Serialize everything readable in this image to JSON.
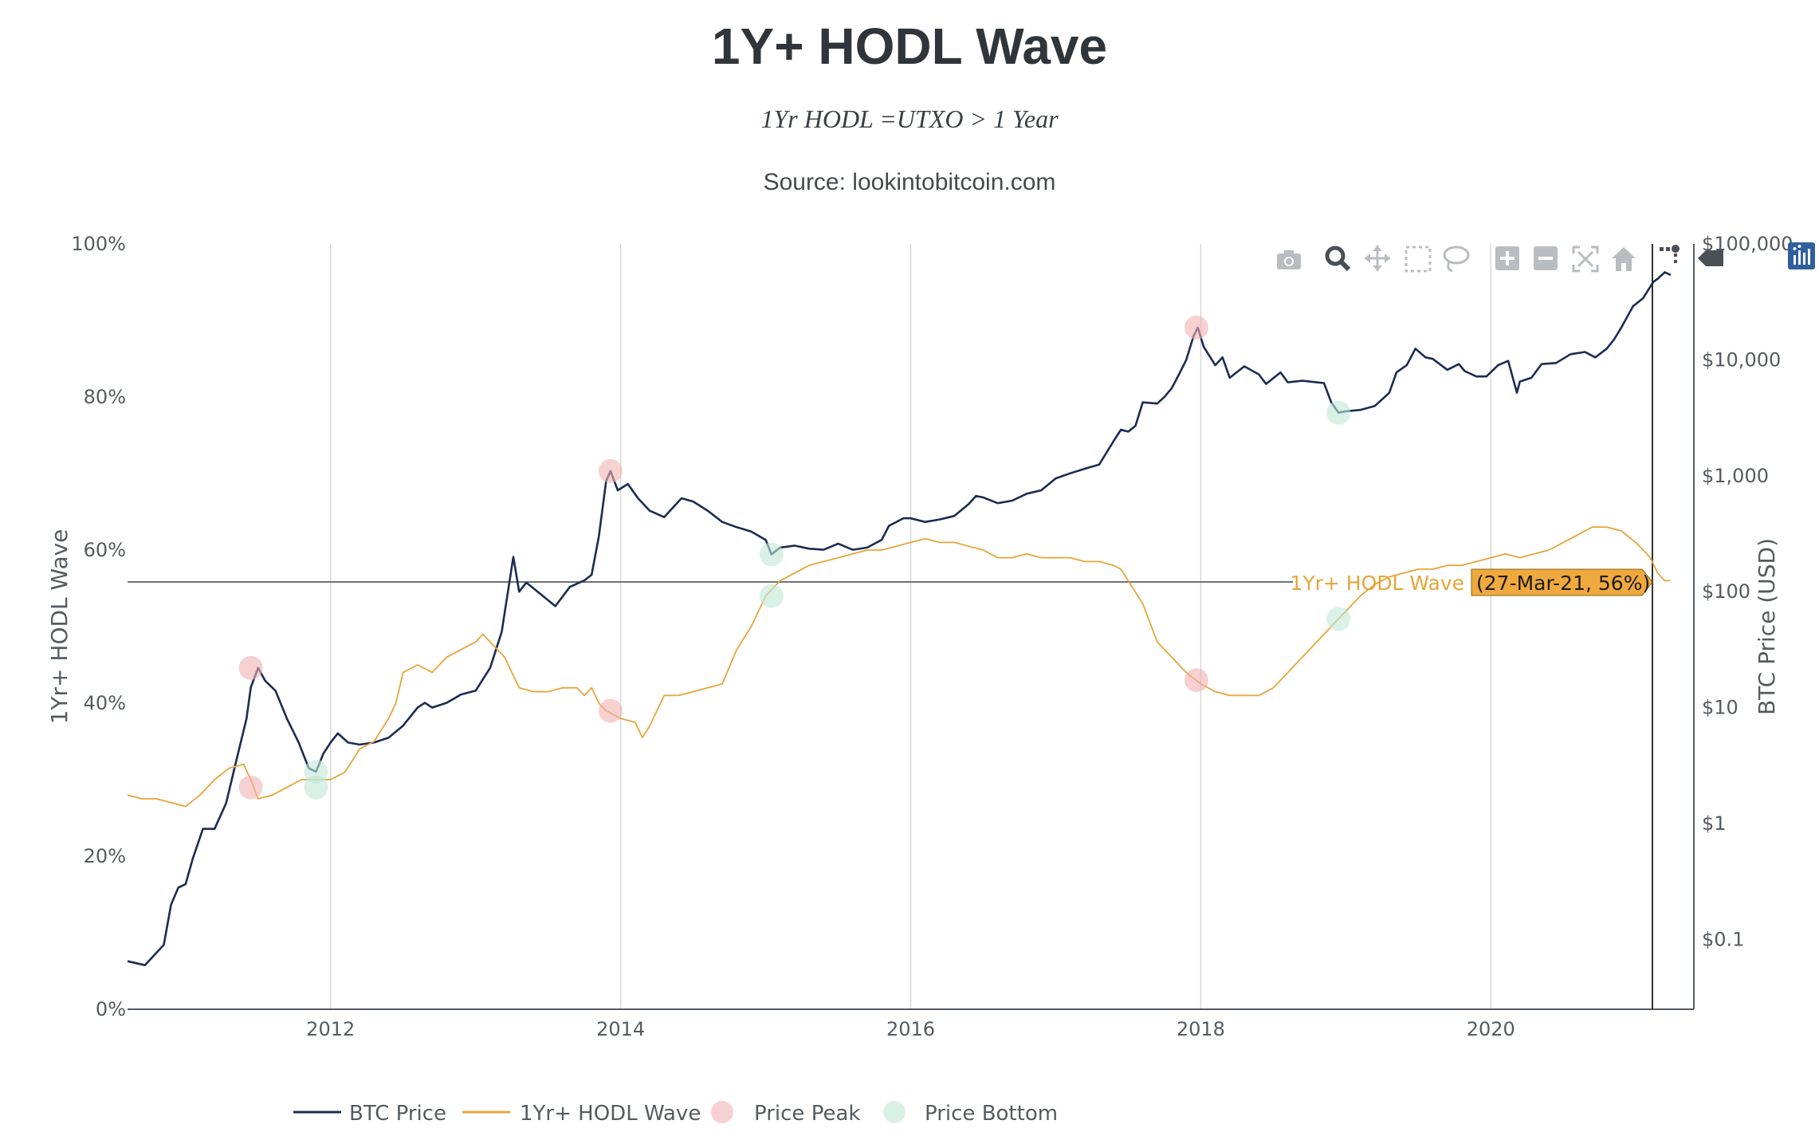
{
  "chart_data": {
    "type": "line",
    "title": "1Y+ HODL Wave",
    "subtitle": "1Yr HODL =UTXO > 1 Year",
    "source": "Source: lookintobitcoin.com",
    "x_ticks": [
      "2012",
      "2014",
      "2016",
      "2018",
      "2020"
    ],
    "x_range": [
      2010.6,
      2021.4
    ],
    "y_left": {
      "label": "1Yr+ HODL Wave",
      "ticks": [
        "0%",
        "20%",
        "40%",
        "60%",
        "80%",
        "100%"
      ],
      "range": [
        0,
        100
      ]
    },
    "y_right": {
      "label": "BTC Price (USD)",
      "scale": "log",
      "ticks": [
        "$0.1",
        "$1",
        "$10",
        "$100",
        "$1,000",
        "$10,000",
        "$100,000"
      ],
      "tick_values": [
        0.1,
        1,
        10,
        100,
        1000,
        10000,
        100000
      ],
      "range": [
        0.025,
        100000
      ]
    },
    "series": [
      {
        "name": "BTC Price",
        "color": "#1b2c52",
        "axis": "right",
        "points": [
          [
            2010.6,
            0.065
          ],
          [
            2010.72,
            0.06
          ],
          [
            2010.85,
            0.09
          ],
          [
            2010.9,
            0.2
          ],
          [
            2010.95,
            0.28
          ],
          [
            2011.0,
            0.3
          ],
          [
            2011.05,
            0.5
          ],
          [
            2011.12,
            0.9
          ],
          [
            2011.2,
            0.9
          ],
          [
            2011.28,
            1.5
          ],
          [
            2011.35,
            3.5
          ],
          [
            2011.42,
            8
          ],
          [
            2011.45,
            15
          ],
          [
            2011.5,
            22
          ],
          [
            2011.55,
            17
          ],
          [
            2011.62,
            14
          ],
          [
            2011.7,
            8
          ],
          [
            2011.78,
            5
          ],
          [
            2011.85,
            3
          ],
          [
            2011.9,
            2.8
          ],
          [
            2011.95,
            4
          ],
          [
            2012.0,
            5
          ],
          [
            2012.05,
            6
          ],
          [
            2012.12,
            5
          ],
          [
            2012.2,
            4.8
          ],
          [
            2012.3,
            5
          ],
          [
            2012.4,
            5.5
          ],
          [
            2012.5,
            7
          ],
          [
            2012.6,
            10
          ],
          [
            2012.65,
            11
          ],
          [
            2012.7,
            10
          ],
          [
            2012.8,
            11
          ],
          [
            2012.9,
            13
          ],
          [
            2013.0,
            14
          ],
          [
            2013.1,
            22
          ],
          [
            2013.18,
            45
          ],
          [
            2013.26,
            200
          ],
          [
            2013.3,
            100
          ],
          [
            2013.35,
            120
          ],
          [
            2013.45,
            95
          ],
          [
            2013.55,
            75
          ],
          [
            2013.65,
            110
          ],
          [
            2013.75,
            125
          ],
          [
            2013.8,
            140
          ],
          [
            2013.85,
            300
          ],
          [
            2013.9,
            900
          ],
          [
            2013.93,
            1100
          ],
          [
            2013.98,
            750
          ],
          [
            2014.05,
            850
          ],
          [
            2014.12,
            640
          ],
          [
            2014.2,
            500
          ],
          [
            2014.3,
            440
          ],
          [
            2014.42,
            640
          ],
          [
            2014.5,
            600
          ],
          [
            2014.6,
            500
          ],
          [
            2014.7,
            400
          ],
          [
            2014.8,
            360
          ],
          [
            2014.9,
            330
          ],
          [
            2015.0,
            280
          ],
          [
            2015.04,
            210
          ],
          [
            2015.1,
            240
          ],
          [
            2015.2,
            250
          ],
          [
            2015.3,
            235
          ],
          [
            2015.4,
            230
          ],
          [
            2015.5,
            260
          ],
          [
            2015.6,
            230
          ],
          [
            2015.7,
            240
          ],
          [
            2015.8,
            280
          ],
          [
            2015.85,
            370
          ],
          [
            2015.95,
            430
          ],
          [
            2016.0,
            430
          ],
          [
            2016.1,
            400
          ],
          [
            2016.2,
            420
          ],
          [
            2016.3,
            450
          ],
          [
            2016.4,
            570
          ],
          [
            2016.45,
            670
          ],
          [
            2016.5,
            650
          ],
          [
            2016.6,
            580
          ],
          [
            2016.7,
            610
          ],
          [
            2016.8,
            700
          ],
          [
            2016.9,
            750
          ],
          [
            2017.0,
            950
          ],
          [
            2017.1,
            1050
          ],
          [
            2017.2,
            1150
          ],
          [
            2017.3,
            1250
          ],
          [
            2017.4,
            2000
          ],
          [
            2017.45,
            2500
          ],
          [
            2017.5,
            2400
          ],
          [
            2017.55,
            2700
          ],
          [
            2017.6,
            4300
          ],
          [
            2017.7,
            4200
          ],
          [
            2017.75,
            4800
          ],
          [
            2017.8,
            5700
          ],
          [
            2017.85,
            7500
          ],
          [
            2017.9,
            10000
          ],
          [
            2017.95,
            16000
          ],
          [
            2017.98,
            19000
          ],
          [
            2018.02,
            13000
          ],
          [
            2018.1,
            9000
          ],
          [
            2018.15,
            10500
          ],
          [
            2018.2,
            7000
          ],
          [
            2018.3,
            8800
          ],
          [
            2018.4,
            7500
          ],
          [
            2018.45,
            6200
          ],
          [
            2018.55,
            7800
          ],
          [
            2018.6,
            6400
          ],
          [
            2018.7,
            6600
          ],
          [
            2018.8,
            6400
          ],
          [
            2018.85,
            6300
          ],
          [
            2018.9,
            4300
          ],
          [
            2018.95,
            3500
          ],
          [
            2019.0,
            3600
          ],
          [
            2019.1,
            3700
          ],
          [
            2019.2,
            4000
          ],
          [
            2019.3,
            5200
          ],
          [
            2019.35,
            7800
          ],
          [
            2019.42,
            9000
          ],
          [
            2019.48,
            12500
          ],
          [
            2019.55,
            10500
          ],
          [
            2019.6,
            10200
          ],
          [
            2019.7,
            8200
          ],
          [
            2019.78,
            9200
          ],
          [
            2019.82,
            8000
          ],
          [
            2019.9,
            7200
          ],
          [
            2019.97,
            7200
          ],
          [
            2020.05,
            9000
          ],
          [
            2020.12,
            9800
          ],
          [
            2020.18,
            5200
          ],
          [
            2020.2,
            6500
          ],
          [
            2020.28,
            7000
          ],
          [
            2020.35,
            9200
          ],
          [
            2020.45,
            9400
          ],
          [
            2020.55,
            11200
          ],
          [
            2020.65,
            11700
          ],
          [
            2020.72,
            10500
          ],
          [
            2020.8,
            12500
          ],
          [
            2020.85,
            15000
          ],
          [
            2020.9,
            19000
          ],
          [
            2020.98,
            29000
          ],
          [
            2021.05,
            34000
          ],
          [
            2021.12,
            47000
          ],
          [
            2021.15,
            50000
          ],
          [
            2021.2,
            57000
          ],
          [
            2021.24,
            54000
          ]
        ]
      },
      {
        "name": "1Yr+ HODL Wave",
        "color": "#e6a53a",
        "axis": "left",
        "points": [
          [
            2010.6,
            28
          ],
          [
            2010.7,
            27.5
          ],
          [
            2010.8,
            27.5
          ],
          [
            2010.9,
            27
          ],
          [
            2011.0,
            26.5
          ],
          [
            2011.1,
            28
          ],
          [
            2011.2,
            30
          ],
          [
            2011.3,
            31.5
          ],
          [
            2011.4,
            32
          ],
          [
            2011.45,
            30
          ],
          [
            2011.5,
            27.5
          ],
          [
            2011.6,
            28
          ],
          [
            2011.7,
            29
          ],
          [
            2011.8,
            30
          ],
          [
            2011.9,
            30
          ],
          [
            2012.0,
            30
          ],
          [
            2012.1,
            31
          ],
          [
            2012.2,
            34
          ],
          [
            2012.3,
            35
          ],
          [
            2012.4,
            38
          ],
          [
            2012.45,
            40
          ],
          [
            2012.5,
            44
          ],
          [
            2012.6,
            45
          ],
          [
            2012.7,
            44
          ],
          [
            2012.8,
            46
          ],
          [
            2012.9,
            47
          ],
          [
            2013.0,
            48
          ],
          [
            2013.05,
            49
          ],
          [
            2013.1,
            48
          ],
          [
            2013.2,
            46
          ],
          [
            2013.25,
            44
          ],
          [
            2013.3,
            42
          ],
          [
            2013.4,
            41.5
          ],
          [
            2013.5,
            41.5
          ],
          [
            2013.6,
            42
          ],
          [
            2013.7,
            42
          ],
          [
            2013.75,
            41
          ],
          [
            2013.8,
            42
          ],
          [
            2013.85,
            40
          ],
          [
            2013.9,
            39
          ],
          [
            2014.0,
            38
          ],
          [
            2014.1,
            37.5
          ],
          [
            2014.15,
            35.5
          ],
          [
            2014.2,
            37
          ],
          [
            2014.3,
            41
          ],
          [
            2014.4,
            41
          ],
          [
            2014.5,
            41.5
          ],
          [
            2014.6,
            42
          ],
          [
            2014.7,
            42.5
          ],
          [
            2014.8,
            47
          ],
          [
            2014.9,
            50
          ],
          [
            2014.95,
            52
          ],
          [
            2015.0,
            54
          ],
          [
            2015.1,
            56
          ],
          [
            2015.2,
            57
          ],
          [
            2015.3,
            58
          ],
          [
            2015.4,
            58.5
          ],
          [
            2015.5,
            59
          ],
          [
            2015.6,
            59.5
          ],
          [
            2015.7,
            60
          ],
          [
            2015.8,
            60
          ],
          [
            2015.9,
            60.5
          ],
          [
            2016.0,
            61
          ],
          [
            2016.1,
            61.5
          ],
          [
            2016.2,
            61
          ],
          [
            2016.3,
            61
          ],
          [
            2016.4,
            60.5
          ],
          [
            2016.5,
            60
          ],
          [
            2016.6,
            59
          ],
          [
            2016.7,
            59
          ],
          [
            2016.8,
            59.5
          ],
          [
            2016.9,
            59
          ],
          [
            2017.0,
            59
          ],
          [
            2017.1,
            59
          ],
          [
            2017.2,
            58.5
          ],
          [
            2017.3,
            58.5
          ],
          [
            2017.4,
            58
          ],
          [
            2017.45,
            57.5
          ],
          [
            2017.5,
            56
          ],
          [
            2017.6,
            53
          ],
          [
            2017.7,
            48
          ],
          [
            2017.8,
            46
          ],
          [
            2017.9,
            44
          ],
          [
            2018.0,
            42.5
          ],
          [
            2018.1,
            41.5
          ],
          [
            2018.2,
            41
          ],
          [
            2018.3,
            41
          ],
          [
            2018.4,
            41
          ],
          [
            2018.5,
            42
          ],
          [
            2018.6,
            44
          ],
          [
            2018.7,
            46
          ],
          [
            2018.8,
            48
          ],
          [
            2018.9,
            50
          ],
          [
            2019.0,
            52
          ],
          [
            2019.1,
            54
          ],
          [
            2019.2,
            55.5
          ],
          [
            2019.3,
            56.5
          ],
          [
            2019.4,
            57
          ],
          [
            2019.5,
            57.5
          ],
          [
            2019.6,
            57.5
          ],
          [
            2019.7,
            58
          ],
          [
            2019.8,
            58
          ],
          [
            2019.9,
            58.5
          ],
          [
            2020.0,
            59
          ],
          [
            2020.1,
            59.5
          ],
          [
            2020.2,
            59
          ],
          [
            2020.3,
            59.5
          ],
          [
            2020.4,
            60
          ],
          [
            2020.5,
            61
          ],
          [
            2020.6,
            62
          ],
          [
            2020.7,
            63
          ],
          [
            2020.8,
            63
          ],
          [
            2020.9,
            62.5
          ],
          [
            2021.0,
            61
          ],
          [
            2021.1,
            59
          ],
          [
            2021.15,
            57
          ],
          [
            2021.2,
            56
          ],
          [
            2021.24,
            56
          ]
        ]
      }
    ],
    "markers": [
      {
        "name": "Price Peak",
        "color": "#f2b3b3",
        "points": [
          {
            "x": 2011.45,
            "series": "BTC Price",
            "y": 22
          },
          {
            "x": 2011.45,
            "series": "1Yr+ HODL Wave",
            "y": 29
          },
          {
            "x": 2013.93,
            "series": "BTC Price",
            "y": 1100
          },
          {
            "x": 2013.93,
            "series": "1Yr+ HODL Wave",
            "y": 39
          },
          {
            "x": 2017.97,
            "series": "BTC Price",
            "y": 19000
          },
          {
            "x": 2017.97,
            "series": "1Yr+ HODL Wave",
            "y": 43
          }
        ]
      },
      {
        "name": "Price Bottom",
        "color": "#bfe8d6",
        "points": [
          {
            "x": 2011.9,
            "series": "BTC Price",
            "y": 2.8
          },
          {
            "x": 2011.9,
            "series": "1Yr+ HODL Wave",
            "y": 29
          },
          {
            "x": 2015.04,
            "series": "BTC Price",
            "y": 210
          },
          {
            "x": 2015.04,
            "series": "1Yr+ HODL Wave",
            "y": 54
          },
          {
            "x": 2018.95,
            "series": "BTC Price",
            "y": 3500
          },
          {
            "x": 2018.95,
            "series": "1Yr+ HODL Wave",
            "y": 51
          }
        ]
      }
    ],
    "hover": {
      "series_label": "1Yr+ HODL Wave",
      "value_label": "(27-Mar-21, 56%)",
      "x": 2021.24,
      "y": 56
    },
    "legend": {
      "placement": "bottom-left",
      "items": [
        "BTC Price",
        "1Yr+ HODL Wave",
        "Price Peak",
        "Price Bottom"
      ]
    }
  }
}
